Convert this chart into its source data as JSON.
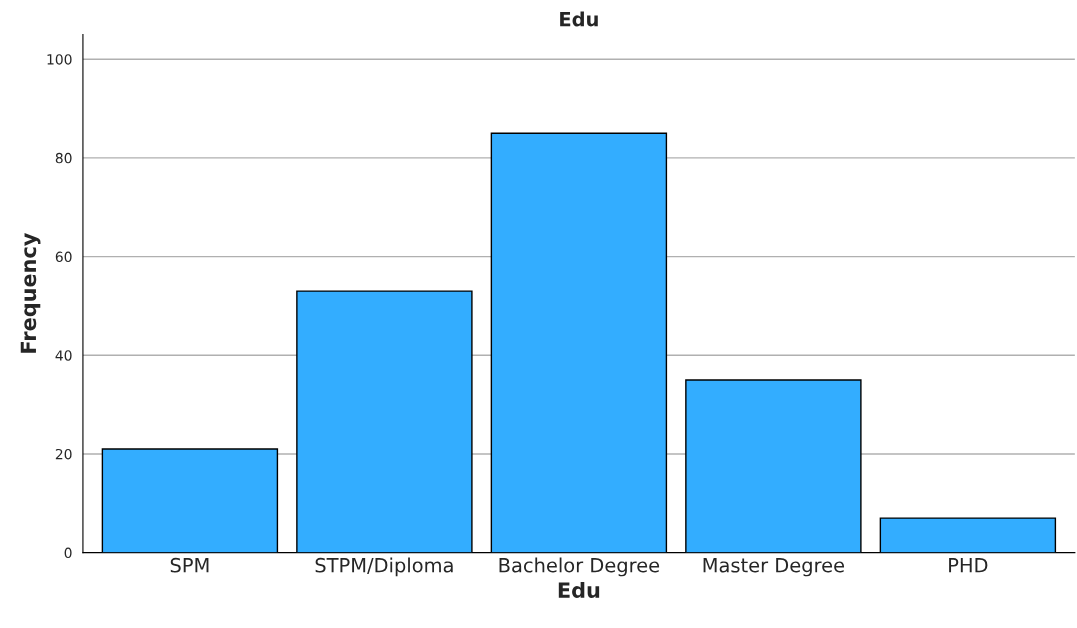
{
  "chart_data": {
    "type": "bar",
    "title": "Edu",
    "xlabel": "Edu",
    "ylabel": "Frequency",
    "categories": [
      "SPM",
      "STPM/Diploma",
      "Bachelor Degree",
      "Master Degree",
      "PHD"
    ],
    "values": [
      21,
      53,
      85,
      35,
      7
    ],
    "color": "#33adff",
    "ylim": [
      0,
      105
    ],
    "yticks": [
      0,
      20,
      40,
      60,
      80,
      100
    ],
    "grid": "y"
  }
}
